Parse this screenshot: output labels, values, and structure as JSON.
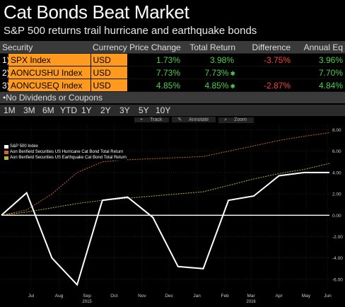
{
  "title": "Cat Bonds Beat Market",
  "subtitle": "S&P 500 returns trail hurricane and earthquake bonds",
  "table": {
    "headers": [
      "Security",
      "Currency",
      "Price Change",
      "Total Return",
      "Difference",
      "Annual Eq"
    ],
    "rows": [
      {
        "num": "1)",
        "security": "SPX Index",
        "currency": "USD",
        "price_change": "1.73%",
        "total_return": "3.98%",
        "difference": "-3.75%",
        "annual_eq": "3.96%",
        "star": ""
      },
      {
        "num": "2)",
        "security": "AONCUSHU Index",
        "currency": "USD",
        "price_change": "7.73%",
        "total_return": "7.73%",
        "difference": "",
        "annual_eq": "7.70%",
        "star": "✱"
      },
      {
        "num": "3)",
        "security": "AONCUSEQ Index",
        "currency": "USD",
        "price_change": "4.85%",
        "total_return": "4.85%",
        "difference": "-2.87%",
        "annual_eq": "4.84%",
        "star": "✱"
      }
    ]
  },
  "note": "No Dividends or Coupons",
  "periods": [
    "1M",
    "3M",
    "6M",
    "YTD",
    "1Y",
    "2Y",
    "3Y",
    "5Y",
    "10Y"
  ],
  "toolbar": [
    "Track",
    "Annotate",
    "Zoom"
  ],
  "colors": {
    "spx": "#ffffff",
    "hurricane": "#c8682a",
    "earthquake": "#b8b040",
    "accent": "#ff9a1e"
  },
  "chart_data": {
    "type": "line",
    "x": [
      "2015-06-12",
      "2015-07-10",
      "2015-08-07",
      "2015-09-04",
      "2015-10-02",
      "2015-10-30",
      "2015-11-27",
      "2015-12-25",
      "2016-01-22",
      "2016-02-19",
      "2016-03-18",
      "2016-04-15",
      "2016-05-13",
      "2016-06-10"
    ],
    "x_tick_labels": [
      "Jul",
      "Aug",
      "Sep",
      "Oct",
      "Nov",
      "Dec",
      "Jan",
      "Feb",
      "Mar",
      "Apr",
      "May",
      "Jun"
    ],
    "x_year_labels": [
      "2015",
      "2016"
    ],
    "series": [
      {
        "name": "S&P 500 Index",
        "values": [
          0.0,
          2.1,
          -4.0,
          -6.5,
          1.4,
          1.7,
          -0.2,
          -4.8,
          -5.0,
          1.4,
          1.8,
          3.7,
          4.0,
          4.0
        ]
      },
      {
        "name": "Aon Benfield Securities US Hurricane Cat Bond Total Return",
        "values": [
          0.0,
          0.5,
          2.0,
          4.0,
          5.0,
          5.2,
          5.3,
          5.4,
          5.5,
          6.0,
          6.5,
          7.0,
          7.4,
          7.73
        ]
      },
      {
        "name": "Aon Benfield Securities US Earthquake Cat Bond Total Return",
        "values": [
          0.0,
          0.3,
          0.7,
          1.1,
          1.4,
          1.6,
          1.8,
          2.0,
          2.2,
          2.8,
          3.4,
          3.9,
          4.3,
          4.85
        ]
      }
    ],
    "ylim": [
      -7,
      8.5
    ],
    "y_ticks": [
      -6,
      -4,
      -2,
      0,
      2,
      4,
      6,
      8
    ],
    "y_tick_labels": [
      "-6.00",
      "-4.00",
      "-2.00",
      "0.00",
      "2.00",
      "4.00",
      "6.00",
      "8.00"
    ],
    "zero_line": 0,
    "legend_position": "top-left",
    "grid": true
  }
}
